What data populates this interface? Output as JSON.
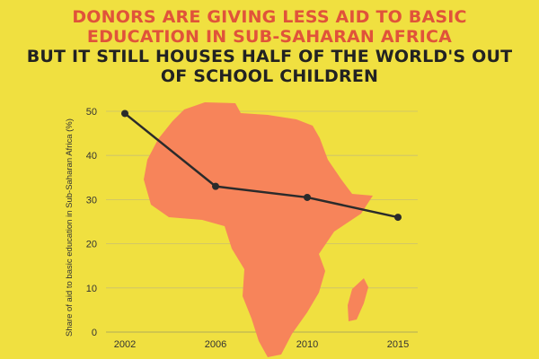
{
  "headline": {
    "line1": "DONORS ARE GIVING LESS AID TO BASIC",
    "line2": "EDUCATION IN SUB-SAHARAN AFRICA",
    "line3": "BUT IT STILL HOUSES HALF OF THE WORLD'S OUT",
    "line4": "OF SCHOOL CHILDREN"
  },
  "colors": {
    "background": "#f0e040",
    "title_red": "#e0533a",
    "title_dark": "#222222",
    "map_fill": "#f7845a",
    "line": "#2b2b2b"
  },
  "icons": {
    "map": "africa-map-icon"
  },
  "chart_data": {
    "type": "line",
    "title": "",
    "xlabel": "",
    "ylabel": "Share of aid to basic education in Sub-Saharan Africa (%)",
    "x": [
      "2002",
      "2006",
      "2010",
      "2015"
    ],
    "values": [
      49.5,
      33,
      30.5,
      26
    ],
    "ylim": [
      0,
      50
    ],
    "yticks": [
      0,
      10,
      20,
      30,
      40,
      50
    ],
    "grid": true
  }
}
